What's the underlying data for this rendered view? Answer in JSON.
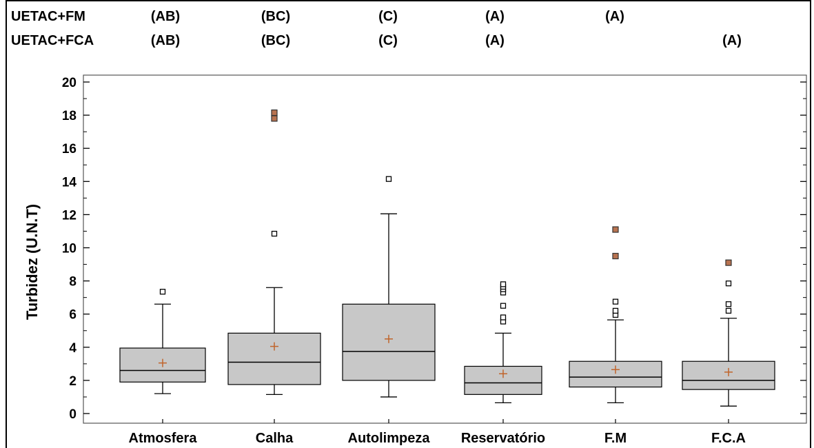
{
  "chart_data": {
    "type": "box",
    "ylabel": "Turbidez (U.N.T)",
    "ylim": [
      -0.7,
      20.6
    ],
    "yticks": [
      0,
      2,
      4,
      6,
      8,
      10,
      12,
      14,
      16,
      18,
      20
    ],
    "categories": [
      "Atmosfera",
      "Calha",
      "Autolimpeza",
      "Reservatório",
      "F.M",
      "F.C.A"
    ],
    "boxes": [
      {
        "category": "Atmosfera",
        "whisker_low": 1.2,
        "q1": 1.9,
        "median": 2.6,
        "q3": 3.95,
        "whisker_high": 6.6,
        "mean": 3.05,
        "outliers": [
          7.35
        ],
        "far_outliers": []
      },
      {
        "category": "Calha",
        "whisker_low": 1.15,
        "q1": 1.75,
        "median": 3.1,
        "q3": 4.85,
        "whisker_high": 7.6,
        "mean": 4.05,
        "outliers": [
          10.85
        ],
        "far_outliers": [
          17.8,
          18.15
        ]
      },
      {
        "category": "Autolimpeza",
        "whisker_low": 1.0,
        "q1": 2.0,
        "median": 3.75,
        "q3": 6.6,
        "whisker_high": 12.05,
        "mean": 4.5,
        "outliers": [
          14.15
        ],
        "far_outliers": []
      },
      {
        "category": "Reservatório",
        "whisker_low": 0.65,
        "q1": 1.15,
        "median": 1.85,
        "q3": 2.85,
        "whisker_high": 4.85,
        "mean": 2.4,
        "outliers": [
          5.55,
          5.8,
          6.5,
          7.3,
          7.5,
          7.65,
          7.8
        ],
        "far_outliers": []
      },
      {
        "category": "F.M",
        "whisker_low": 0.65,
        "q1": 1.6,
        "median": 2.2,
        "q3": 3.15,
        "whisker_high": 5.65,
        "mean": 2.65,
        "outliers": [
          5.95,
          6.2,
          6.75
        ],
        "far_outliers": [
          9.5,
          11.1
        ]
      },
      {
        "category": "F.C.A",
        "whisker_low": 0.45,
        "q1": 1.45,
        "median": 2.0,
        "q3": 3.15,
        "whisker_high": 5.75,
        "mean": 2.5,
        "outliers": [
          6.2,
          6.6,
          7.85
        ],
        "far_outliers": [
          9.1
        ]
      }
    ],
    "group_rows": [
      {
        "label": "UETAC+FM",
        "letters": [
          "(AB)",
          "(BC)",
          "(C)",
          "(A)",
          "(A)",
          ""
        ]
      },
      {
        "label": "UETAC+FCA",
        "letters": [
          "(AB)",
          "(BC)",
          "(C)",
          "(A)",
          "",
          "(A)"
        ]
      }
    ],
    "colors": {
      "box_fill": "#c8c8c8",
      "mean_marker": "#c0642a",
      "far_outlier": "#b87350",
      "axis": "#000000"
    }
  }
}
